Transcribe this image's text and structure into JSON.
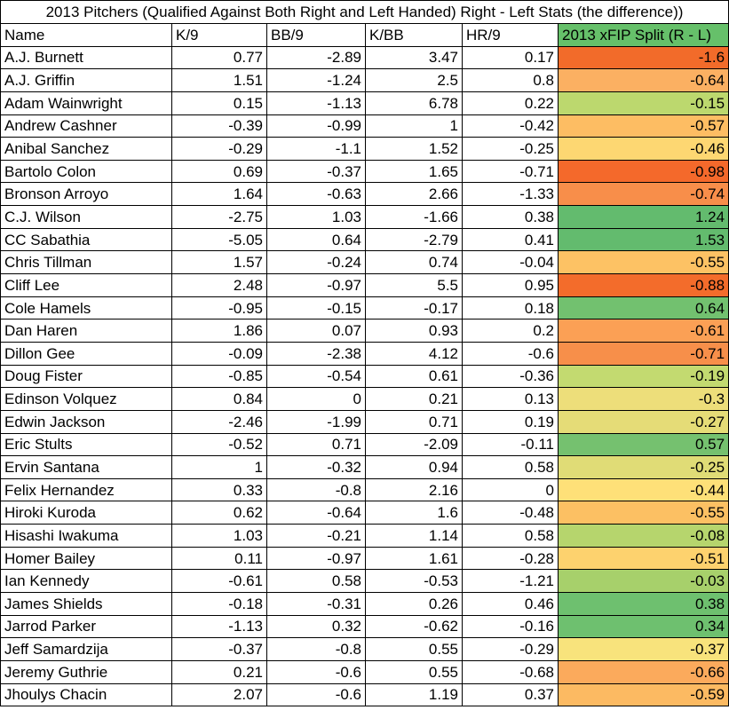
{
  "table": {
    "title": "2013 Pitchers (Qualified Against Both Right and Left Handed) Right - Left Stats (the difference))",
    "columns": [
      "Name",
      "K/9",
      "BB/9",
      "K/BB",
      "HR/9",
      "2013 xFIP Split (R - L)"
    ],
    "rows": [
      [
        "A.J. Burnett",
        "0.77",
        "-2.89",
        "3.47",
        "0.17",
        "-1.6"
      ],
      [
        "A.J. Griffin",
        "1.51",
        "-1.24",
        "2.5",
        "0.8",
        "-0.64"
      ],
      [
        "Adam Wainwright",
        "0.15",
        "-1.13",
        "6.78",
        "0.22",
        "-0.15"
      ],
      [
        "Andrew Cashner",
        "-0.39",
        "-0.99",
        "1",
        "-0.42",
        "-0.57"
      ],
      [
        "Anibal Sanchez",
        "-0.29",
        "-1.1",
        "1.52",
        "-0.25",
        "-0.46"
      ],
      [
        "Bartolo Colon",
        "0.69",
        "-0.37",
        "1.65",
        "-0.71",
        "-0.98"
      ],
      [
        "Bronson Arroyo",
        "1.64",
        "-0.63",
        "2.66",
        "-1.33",
        "-0.74"
      ],
      [
        "C.J. Wilson",
        "-2.75",
        "1.03",
        "-1.66",
        "0.38",
        "1.24"
      ],
      [
        "CC Sabathia",
        "-5.05",
        "0.64",
        "-2.79",
        "0.41",
        "1.53"
      ],
      [
        "Chris Tillman",
        "1.57",
        "-0.24",
        "0.74",
        "-0.04",
        "-0.55"
      ],
      [
        "Cliff Lee",
        "2.48",
        "-0.97",
        "5.5",
        "0.95",
        "-0.88"
      ],
      [
        "Cole Hamels",
        "-0.95",
        "-0.15",
        "-0.17",
        "0.18",
        "0.64"
      ],
      [
        "Dan Haren",
        "1.86",
        "0.07",
        "0.93",
        "0.2",
        "-0.61"
      ],
      [
        "Dillon Gee",
        "-0.09",
        "-2.38",
        "4.12",
        "-0.6",
        "-0.71"
      ],
      [
        "Doug Fister",
        "-0.85",
        "-0.54",
        "0.61",
        "-0.36",
        "-0.19"
      ],
      [
        "Edinson Volquez",
        "0.84",
        "0",
        "0.21",
        "0.13",
        "-0.3"
      ],
      [
        "Edwin Jackson",
        "-2.46",
        "-1.99",
        "0.71",
        "0.19",
        "-0.27"
      ],
      [
        "Eric Stults",
        "-0.52",
        "0.71",
        "-2.09",
        "-0.11",
        "0.57"
      ],
      [
        "Ervin Santana",
        "1",
        "-0.32",
        "0.94",
        "0.58",
        "-0.25"
      ],
      [
        "Felix Hernandez",
        "0.33",
        "-0.8",
        "2.16",
        "0",
        "-0.44"
      ],
      [
        "Hiroki Kuroda",
        "0.62",
        "-0.64",
        "1.6",
        "-0.48",
        "-0.55"
      ],
      [
        "Hisashi Iwakuma",
        "1.03",
        "-0.21",
        "1.14",
        "0.58",
        "-0.08"
      ],
      [
        "Homer Bailey",
        "0.11",
        "-0.97",
        "1.61",
        "-0.28",
        "-0.51"
      ],
      [
        "Ian Kennedy",
        "-0.61",
        "0.58",
        "-0.53",
        "-1.21",
        "-0.03"
      ],
      [
        "James Shields",
        "-0.18",
        "-0.31",
        "0.26",
        "0.46",
        "0.38"
      ],
      [
        "Jarrod Parker",
        "-1.13",
        "0.32",
        "-0.62",
        "-0.16",
        "0.34"
      ],
      [
        "Jeff Samardzija",
        "-0.37",
        "-0.8",
        "0.55",
        "-0.29",
        "-0.37"
      ],
      [
        "Jeremy Guthrie",
        "0.21",
        "-0.6",
        "0.55",
        "-0.68",
        "-0.66"
      ],
      [
        "Jhoulys Chacin",
        "2.07",
        "-0.6",
        "1.19",
        "0.37",
        "-0.59"
      ]
    ],
    "xfip_colors": [
      "#f26b2a",
      "#fbb062",
      "#bcd86e",
      "#fdbd63",
      "#fdd772",
      "#f4692b",
      "#f88e4a",
      "#63bb6e",
      "#63bb6e",
      "#fdc264",
      "#f36c2b",
      "#72c16f",
      "#fba055",
      "#f78f4a",
      "#c3da70",
      "#edde7a",
      "#e5dc77",
      "#75c16f",
      "#e0dc76",
      "#fee078",
      "#fcc063",
      "#b6d56d",
      "#fdd26e",
      "#a7d06b",
      "#6ec06f",
      "#6ec06f",
      "#f8e37c",
      "#fbaa5c",
      "#fcba62"
    ],
    "header_accent": "#66c06a"
  },
  "chart_data": {
    "type": "table",
    "title": "2013 Pitchers (Qualified Against Both Right and Left Handed) Right - Left Stats (the difference))",
    "columns": [
      "Name",
      "K/9",
      "BB/9",
      "K/BB",
      "HR/9",
      "2013 xFIP Split (R - L)"
    ],
    "categories": [
      "A.J. Burnett",
      "A.J. Griffin",
      "Adam Wainwright",
      "Andrew Cashner",
      "Anibal Sanchez",
      "Bartolo Colon",
      "Bronson Arroyo",
      "C.J. Wilson",
      "CC Sabathia",
      "Chris Tillman",
      "Cliff Lee",
      "Cole Hamels",
      "Dan Haren",
      "Dillon Gee",
      "Doug Fister",
      "Edinson Volquez",
      "Edwin Jackson",
      "Eric Stults",
      "Ervin Santana",
      "Felix Hernandez",
      "Hiroki Kuroda",
      "Hisashi Iwakuma",
      "Homer Bailey",
      "Ian Kennedy",
      "James Shields",
      "Jarrod Parker",
      "Jeff Samardzija",
      "Jeremy Guthrie",
      "Jhoulys Chacin"
    ],
    "series": [
      {
        "name": "K/9",
        "values": [
          0.77,
          1.51,
          0.15,
          -0.39,
          -0.29,
          0.69,
          1.64,
          -2.75,
          -5.05,
          1.57,
          2.48,
          -0.95,
          1.86,
          -0.09,
          -0.85,
          0.84,
          -2.46,
          -0.52,
          1,
          0.33,
          0.62,
          1.03,
          0.11,
          -0.61,
          -0.18,
          -1.13,
          -0.37,
          0.21,
          2.07
        ]
      },
      {
        "name": "BB/9",
        "values": [
          -2.89,
          -1.24,
          -1.13,
          -0.99,
          -1.1,
          -0.37,
          -0.63,
          1.03,
          0.64,
          -0.24,
          -0.97,
          -0.15,
          0.07,
          -2.38,
          -0.54,
          0,
          -1.99,
          0.71,
          -0.32,
          -0.8,
          -0.64,
          -0.21,
          -0.97,
          0.58,
          -0.31,
          0.32,
          -0.8,
          -0.6,
          -0.6
        ]
      },
      {
        "name": "K/BB",
        "values": [
          3.47,
          2.5,
          6.78,
          1,
          1.52,
          1.65,
          2.66,
          -1.66,
          -2.79,
          0.74,
          5.5,
          -0.17,
          0.93,
          4.12,
          0.61,
          0.21,
          0.71,
          -2.09,
          0.94,
          2.16,
          1.6,
          1.14,
          1.61,
          -0.53,
          0.26,
          -0.62,
          0.55,
          0.55,
          1.19
        ]
      },
      {
        "name": "HR/9",
        "values": [
          0.17,
          0.8,
          0.22,
          -0.42,
          -0.25,
          -0.71,
          -1.33,
          0.38,
          0.41,
          -0.04,
          0.95,
          0.18,
          0.2,
          -0.6,
          -0.36,
          0.13,
          0.19,
          -0.11,
          0.58,
          0,
          -0.48,
          0.58,
          -0.28,
          -1.21,
          0.46,
          -0.16,
          -0.29,
          -0.68,
          0.37
        ]
      },
      {
        "name": "2013 xFIP Split (R - L)",
        "values": [
          -1.6,
          -0.64,
          -0.15,
          -0.57,
          -0.46,
          -0.98,
          -0.74,
          1.24,
          1.53,
          -0.55,
          -0.88,
          0.64,
          -0.61,
          -0.71,
          -0.19,
          -0.3,
          -0.27,
          0.57,
          -0.25,
          -0.44,
          -0.55,
          -0.08,
          -0.51,
          -0.03,
          0.38,
          0.34,
          -0.37,
          -0.66,
          -0.59
        ]
      }
    ]
  }
}
